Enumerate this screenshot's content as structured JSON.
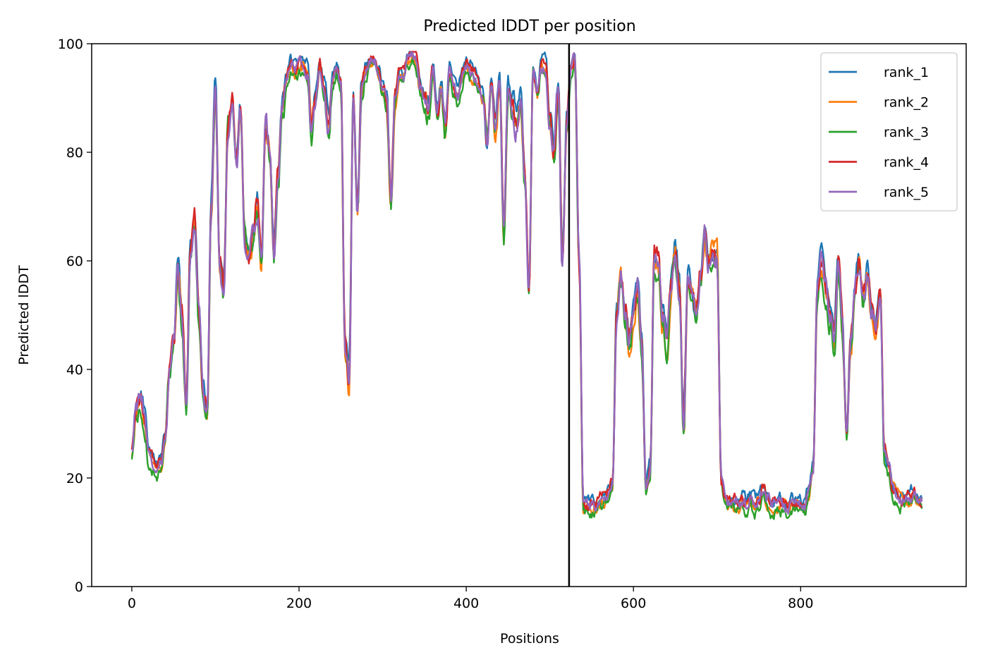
{
  "chart_data": {
    "type": "line",
    "title": "Predicted lDDT per position",
    "xlabel": "Positions",
    "ylabel": "Predicted lDDT",
    "xlim": [
      -48,
      998
    ],
    "ylim": [
      0,
      100
    ],
    "xticks": [
      0,
      200,
      400,
      600,
      800
    ],
    "yticks": [
      0,
      20,
      40,
      60,
      80,
      100
    ],
    "grid": false,
    "legend_position": "top-right",
    "vline": 523,
    "x_step": 5,
    "base_profile": [
      25,
      33,
      35,
      32,
      25,
      23,
      22,
      23,
      28,
      40,
      44,
      58,
      50,
      33,
      62,
      67,
      50,
      35,
      32,
      70,
      92,
      60,
      55,
      85,
      90,
      78,
      88,
      65,
      62,
      64,
      70,
      60,
      85,
      80,
      62,
      75,
      88,
      93,
      96,
      95,
      96,
      96,
      95,
      85,
      90,
      96,
      92,
      85,
      93,
      95,
      92,
      45,
      38,
      90,
      70,
      92,
      95,
      97,
      97,
      95,
      92,
      90,
      72,
      90,
      95,
      94,
      97,
      98,
      97,
      92,
      90,
      88,
      95,
      88,
      92,
      85,
      95,
      92,
      90,
      94,
      96,
      95,
      94,
      92,
      90,
      82,
      93,
      85,
      93,
      65,
      92,
      88,
      85,
      90,
      75,
      55,
      95,
      91,
      96,
      96,
      85,
      80,
      92,
      60,
      85,
      95,
      97,
      60,
      15,
      15,
      15,
      15,
      16,
      16,
      17,
      19,
      50,
      57,
      50,
      45,
      50,
      55,
      45,
      18,
      22,
      60,
      60,
      50,
      45,
      55,
      62,
      55,
      30,
      57,
      55,
      50,
      57,
      65,
      60,
      62,
      62,
      20,
      16,
      15,
      15,
      15,
      16,
      15,
      16,
      15,
      16,
      18,
      16,
      15,
      15,
      15,
      15,
      14,
      15,
      15,
      15,
      15,
      18,
      22,
      55,
      60,
      55,
      50,
      45,
      60,
      48,
      28,
      45,
      55,
      60,
      52,
      57,
      50,
      48,
      55,
      25,
      22,
      18,
      17,
      16,
      16,
      16,
      17,
      16,
      16
    ],
    "series": [
      {
        "name": "rank_1",
        "color": "#1f77b4",
        "bias": 1.0,
        "seed": 11
      },
      {
        "name": "rank_2",
        "color": "#ff7f0e",
        "bias": -0.5,
        "seed": 23
      },
      {
        "name": "rank_3",
        "color": "#2ca02c",
        "bias": -1.2,
        "seed": 37
      },
      {
        "name": "rank_4",
        "color": "#d62728",
        "bias": 0.4,
        "seed": 51
      },
      {
        "name": "rank_5",
        "color": "#9467bd",
        "bias": 0.0,
        "seed": 67
      }
    ]
  }
}
